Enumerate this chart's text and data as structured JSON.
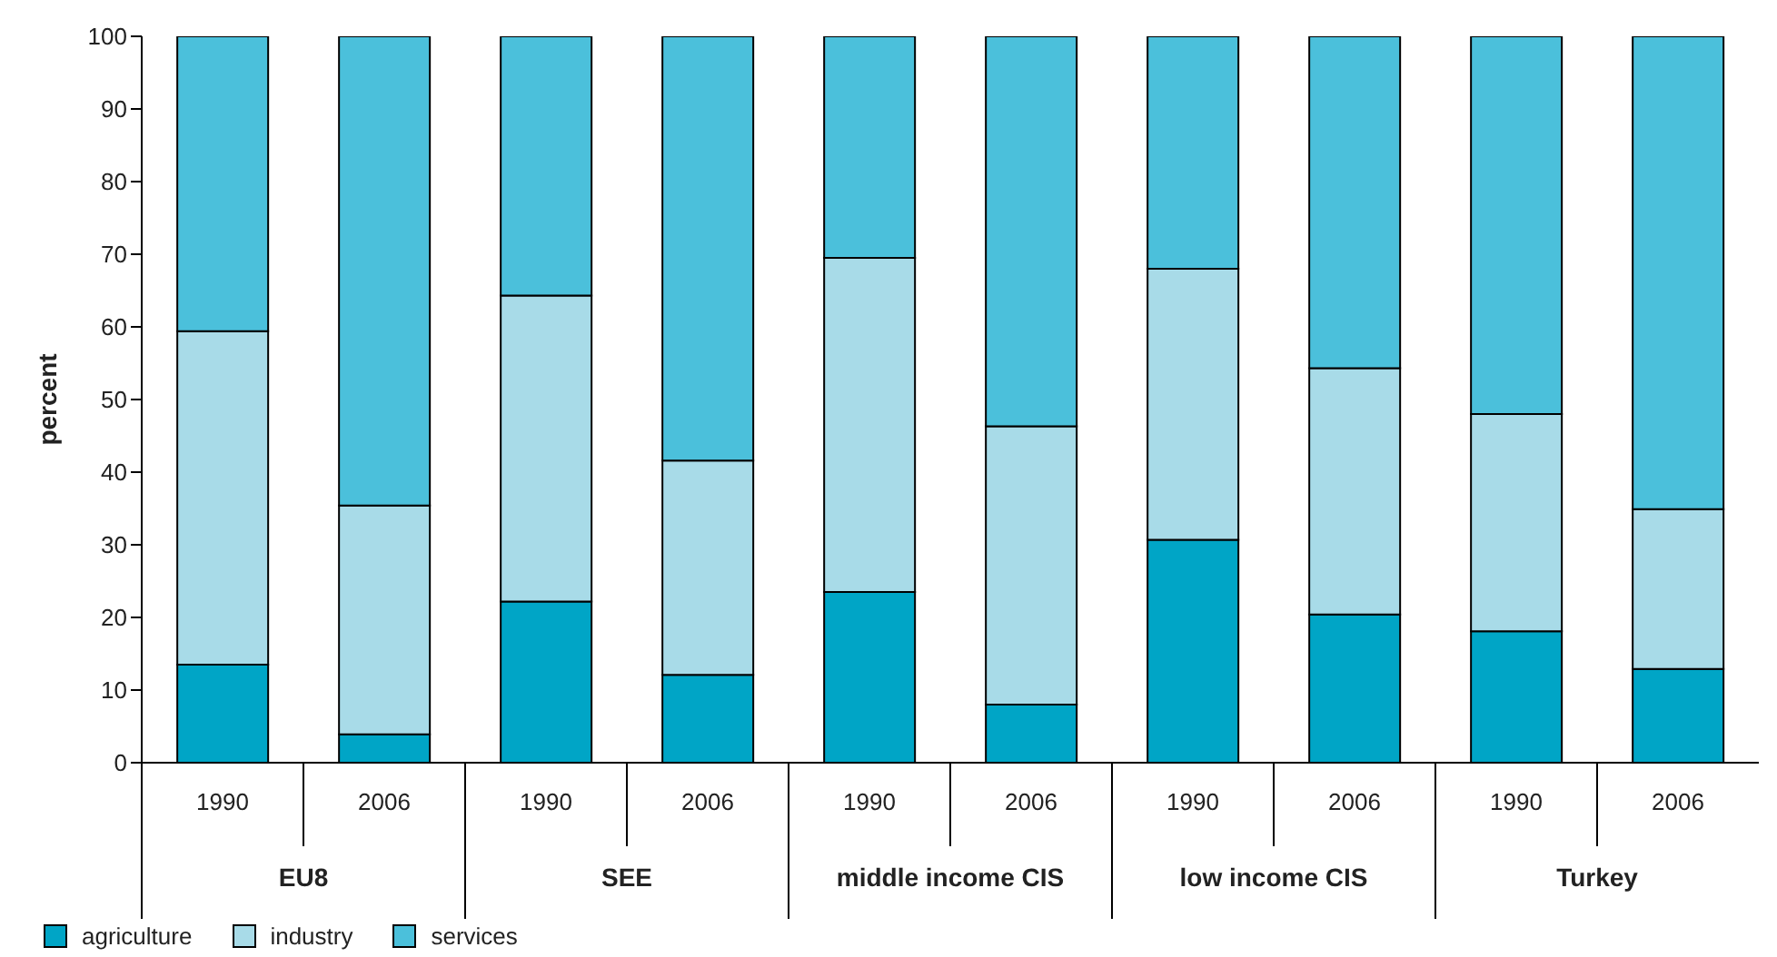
{
  "chart_data": {
    "type": "bar",
    "stacked": true,
    "ylabel": "percent",
    "categories": [
      "1990",
      "2006",
      "1990",
      "2006",
      "1990",
      "2006",
      "1990",
      "2006",
      "1990",
      "2006"
    ],
    "annotations": [
      "EU8",
      "SEE",
      "middle income CIS",
      "low income CIS",
      "Turkey"
    ],
    "series": [
      {
        "name": "agriculture",
        "color": "#00a5c6",
        "values": [
          13.5,
          3.9,
          22.2,
          12.1,
          23.5,
          8.0,
          30.7,
          20.4,
          18.1,
          12.9
        ]
      },
      {
        "name": "industry",
        "color": "#a8dbe8",
        "values": [
          45.9,
          31.5,
          42.1,
          29.5,
          46.0,
          38.3,
          37.3,
          33.9,
          29.9,
          22.0
        ]
      },
      {
        "name": "services",
        "color": "#4bc0db",
        "values": [
          40.6,
          64.6,
          35.7,
          58.4,
          30.5,
          53.7,
          32.0,
          45.7,
          52.0,
          65.1
        ]
      }
    ],
    "ylim": [
      0,
      100
    ],
    "yticks": [
      0,
      10,
      20,
      30,
      40,
      50,
      60,
      70,
      80,
      90,
      100
    ],
    "grid": false,
    "legend": "bottom left"
  }
}
